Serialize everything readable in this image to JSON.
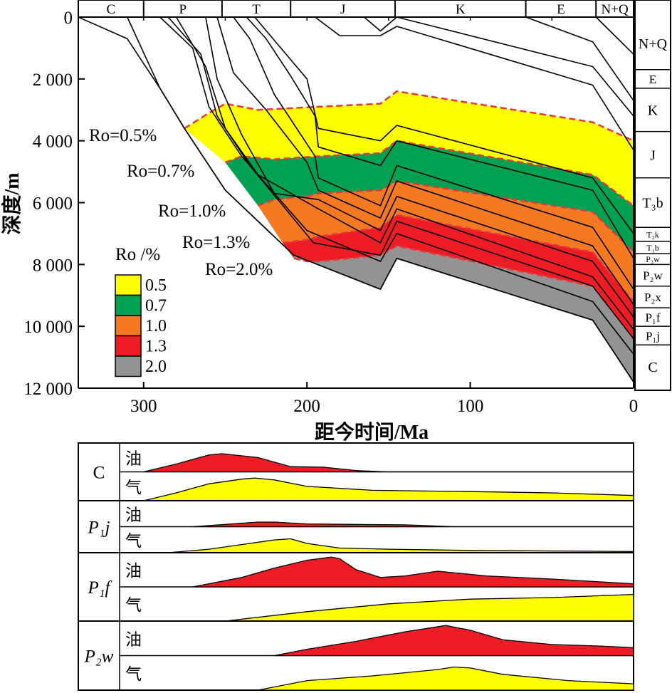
{
  "chart_data": [
    {
      "type": "area",
      "subtype": "burial-history",
      "xlabel": "距今时间/Ma",
      "ylabel": "深度/m",
      "xlim": [
        340,
        0
      ],
      "ylim": [
        12000,
        0
      ],
      "x_ticks": [
        300,
        200,
        100,
        0
      ],
      "x_tick_labels": [
        "300",
        "200",
        "100",
        "0"
      ],
      "y_ticks": [
        0,
        2000,
        4000,
        6000,
        8000,
        10000,
        12000
      ],
      "y_tick_labels": [
        "0",
        "2 000",
        "4 000",
        "6 000",
        "8 000",
        "10 000",
        "12 000"
      ],
      "periods": [
        {
          "label": "C",
          "start": 340,
          "end": 300
        },
        {
          "label": "P",
          "start": 300,
          "end": 252
        },
        {
          "label": "T",
          "start": 252,
          "end": 210
        },
        {
          "label": "J",
          "start": 210,
          "end": 146
        },
        {
          "label": "K",
          "start": 146,
          "end": 66
        },
        {
          "label": "E",
          "start": 66,
          "end": 23
        },
        {
          "label": "N+Q",
          "start": 23,
          "end": 0
        }
      ],
      "formation_column": [
        {
          "label": "N+Q",
          "top": 0,
          "base": 1700
        },
        {
          "label": "E",
          "top": 1700,
          "base": 2300
        },
        {
          "label": "K",
          "top": 2300,
          "base": 3700
        },
        {
          "label": "J",
          "top": 3700,
          "base": 5200
        },
        {
          "label": "T₃b",
          "top": 5200,
          "base": 6800
        },
        {
          "label": "T₂k",
          "top": 6800,
          "base": 7250
        },
        {
          "label": "T₁b",
          "top": 7250,
          "base": 7650
        },
        {
          "label": "P₃w",
          "top": 7650,
          "base": 8000
        },
        {
          "label": "P₂w",
          "top": 8000,
          "base": 8700
        },
        {
          "label": "P₂x",
          "top": 8700,
          "base": 9400
        },
        {
          "label": "P₁f",
          "top": 9400,
          "base": 10000
        },
        {
          "label": "P₁j",
          "top": 10000,
          "base": 10600
        },
        {
          "label": "C",
          "top": 10600,
          "base": 12000
        }
      ],
      "burial_lines": [
        {
          "x": [
            340,
            310,
            290,
            275,
            250,
            208,
            155,
            145,
            25,
            0
          ],
          "y": [
            0,
            700,
            2300,
            3600,
            5600,
            7700,
            8800,
            7800,
            9800,
            11800
          ]
        },
        {
          "x": [
            310,
            290,
            275,
            250,
            208,
            155,
            145,
            25,
            0
          ],
          "y": [
            0,
            2300,
            3600,
            5600,
            7700,
            8800,
            7800,
            9800,
            11800
          ]
        },
        {
          "x": [
            290,
            270,
            260,
            240,
            200,
            155,
            145,
            25,
            0
          ],
          "y": [
            0,
            1000,
            2900,
            4500,
            6900,
            7900,
            7000,
            9200,
            10900
          ]
        },
        {
          "x": [
            285,
            265,
            255,
            235,
            196,
            155,
            145,
            25,
            0
          ],
          "y": [
            0,
            1200,
            3200,
            4800,
            7300,
            7700,
            6600,
            8700,
            10400
          ]
        },
        {
          "x": [
            280,
            262,
            250,
            230,
            193,
            155,
            145,
            25,
            0
          ],
          "y": [
            0,
            1600,
            3600,
            5100,
            6200,
            7300,
            6200,
            8400,
            10100
          ]
        },
        {
          "x": [
            262,
            255,
            240,
            220,
            193,
            155,
            145,
            25,
            0
          ],
          "y": [
            0,
            2000,
            3800,
            5700,
            5900,
            6900,
            5800,
            7900,
            9700
          ]
        },
        {
          "x": [
            255,
            245,
            225,
            200,
            193,
            155,
            145,
            25,
            0
          ],
          "y": [
            0,
            1800,
            3000,
            4700,
            5600,
            6500,
            5300,
            7400,
            9300
          ]
        },
        {
          "x": [
            245,
            235,
            220,
            195,
            193,
            155,
            145,
            25,
            0
          ],
          "y": [
            0,
            700,
            2500,
            4500,
            5200,
            6100,
            4800,
            6800,
            8800
          ]
        },
        {
          "x": [
            237,
            225,
            210,
            195,
            193,
            155,
            145,
            25,
            0
          ],
          "y": [
            0,
            700,
            1900,
            3200,
            4200,
            4800,
            4000,
            5600,
            7800
          ]
        },
        {
          "x": [
            232,
            200,
            193,
            155,
            145,
            25,
            0
          ],
          "y": [
            0,
            2000,
            3600,
            4000,
            3500,
            5200,
            7000
          ]
        },
        {
          "x": [
            195,
            180,
            155,
            145,
            25,
            0
          ],
          "y": [
            0,
            600,
            600,
            300,
            2200,
            4300
          ]
        },
        {
          "x": [
            165,
            155,
            145
          ],
          "y": [
            0,
            450,
            0
          ]
        },
        {
          "x": [
            145,
            25,
            0
          ],
          "y": [
            0,
            1600,
            3200
          ]
        },
        {
          "x": [
            66,
            25,
            0
          ],
          "y": [
            0,
            800,
            2700
          ]
        },
        {
          "x": [
            23,
            0
          ],
          "y": [
            0,
            1200
          ]
        }
      ],
      "ro_zone_boundaries": [
        {
          "label": "0.5%",
          "x": [
            275,
            260,
            250,
            230,
            193,
            155,
            145,
            25,
            0
          ],
          "y": [
            3600,
            3100,
            2800,
            3000,
            2900,
            2800,
            2400,
            3400,
            4000
          ]
        },
        {
          "label": "0.7%",
          "x": [
            250,
            240,
            220,
            193,
            155,
            145,
            25,
            0
          ],
          "y": [
            4700,
            4500,
            4600,
            4500,
            4400,
            4000,
            5100,
            6100
          ]
        },
        {
          "label": "1.0%",
          "x": [
            230,
            220,
            200,
            193,
            155,
            145,
            25,
            0
          ],
          "y": [
            6100,
            5900,
            5800,
            5700,
            5600,
            5300,
            6300,
            7600
          ]
        },
        {
          "label": "1.3%",
          "x": [
            215,
            200,
            193,
            155,
            145,
            25,
            0
          ],
          "y": [
            7300,
            7200,
            7100,
            6800,
            6400,
            7600,
            9200
          ]
        },
        {
          "label": "2.0%",
          "x": [
            208,
            200,
            193,
            155,
            145,
            25,
            0
          ],
          "y": [
            7800,
            7900,
            7900,
            7700,
            7400,
            8700,
            10400
          ]
        }
      ],
      "legend": {
        "title": "Ro /%",
        "entries": [
          {
            "label": "0.5",
            "color": "#ffff00"
          },
          {
            "label": "0.7",
            "color": "#00a150"
          },
          {
            "label": "1.0",
            "color": "#f47920"
          },
          {
            "label": "1.3",
            "color": "#ee1c25"
          },
          {
            "label": "2.0",
            "color": "#939393"
          }
        ],
        "placement": "lower-left"
      },
      "ro_labels": [
        "Ro=0.5%",
        "Ro=0.7%",
        "Ro=1.0%",
        "Ro=1.3%",
        "Ro=2.0%"
      ],
      "boundary_line_color": "#e8373c"
    },
    {
      "type": "area",
      "subtype": "hydrocarbon-generation",
      "xlim": [
        340,
        0
      ],
      "oil_color": "#ee1c25",
      "gas_color": "#ffff00",
      "groups": [
        {
          "formation": "C",
          "oil": {
            "label": "油",
            "x": [
              300,
              280,
              260,
              252,
              230,
              210,
              190,
              170,
              150,
              0
            ],
            "v": [
              0,
              0.3,
              0.65,
              0.7,
              0.55,
              0.2,
              0.18,
              0.05,
              0,
              0
            ]
          },
          "gas": {
            "label": "气",
            "x": [
              300,
              280,
              260,
              240,
              232,
              220,
              200,
              160,
              100,
              50,
              0
            ],
            "v": [
              0,
              0.3,
              0.65,
              0.83,
              0.87,
              0.8,
              0.55,
              0.4,
              0.35,
              0.3,
              0.2
            ]
          }
        },
        {
          "formation": "P₁j",
          "oil": {
            "label": "油",
            "x": [
              270,
              250,
              230,
              220,
              200,
              170,
              140,
              110,
              0
            ],
            "v": [
              0,
              0.1,
              0.2,
              0.2,
              0.12,
              0.1,
              0.08,
              0,
              0
            ]
          },
          "gas": {
            "label": "气",
            "x": [
              285,
              260,
              240,
              220,
              210,
              200,
              180,
              150,
              100,
              0
            ],
            "v": [
              0,
              0.15,
              0.35,
              0.55,
              0.6,
              0.4,
              0.2,
              0.15,
              0.1,
              0.05
            ]
          }
        },
        {
          "formation": "P₁f",
          "oil": {
            "label": "油",
            "x": [
              270,
              240,
              220,
              200,
              185,
              180,
              170,
              155,
              140,
              120,
              90,
              50,
              0
            ],
            "v": [
              0,
              0.3,
              0.6,
              0.85,
              0.95,
              0.9,
              0.55,
              0.3,
              0.35,
              0.5,
              0.35,
              0.25,
              0.1
            ]
          },
          "gas": {
            "label": "气",
            "x": [
              250,
              200,
              150,
              100,
              50,
              0
            ],
            "v": [
              0,
              0.3,
              0.55,
              0.7,
              0.75,
              0.85
            ]
          }
        },
        {
          "formation": "P₂w",
          "oil": {
            "label": "油",
            "x": [
              220,
              200,
              170,
              140,
              115,
              100,
              80,
              50,
              20,
              0
            ],
            "v": [
              0,
              0.2,
              0.45,
              0.75,
              0.95,
              0.8,
              0.5,
              0.35,
              0.3,
              0.25
            ]
          },
          "gas": {
            "label": "气",
            "x": [
              230,
              200,
              160,
              120,
              110,
              100,
              80,
              40,
              0
            ],
            "v": [
              0,
              0.3,
              0.45,
              0.65,
              0.73,
              0.7,
              0.5,
              0.3,
              0.2
            ]
          }
        }
      ]
    }
  ]
}
